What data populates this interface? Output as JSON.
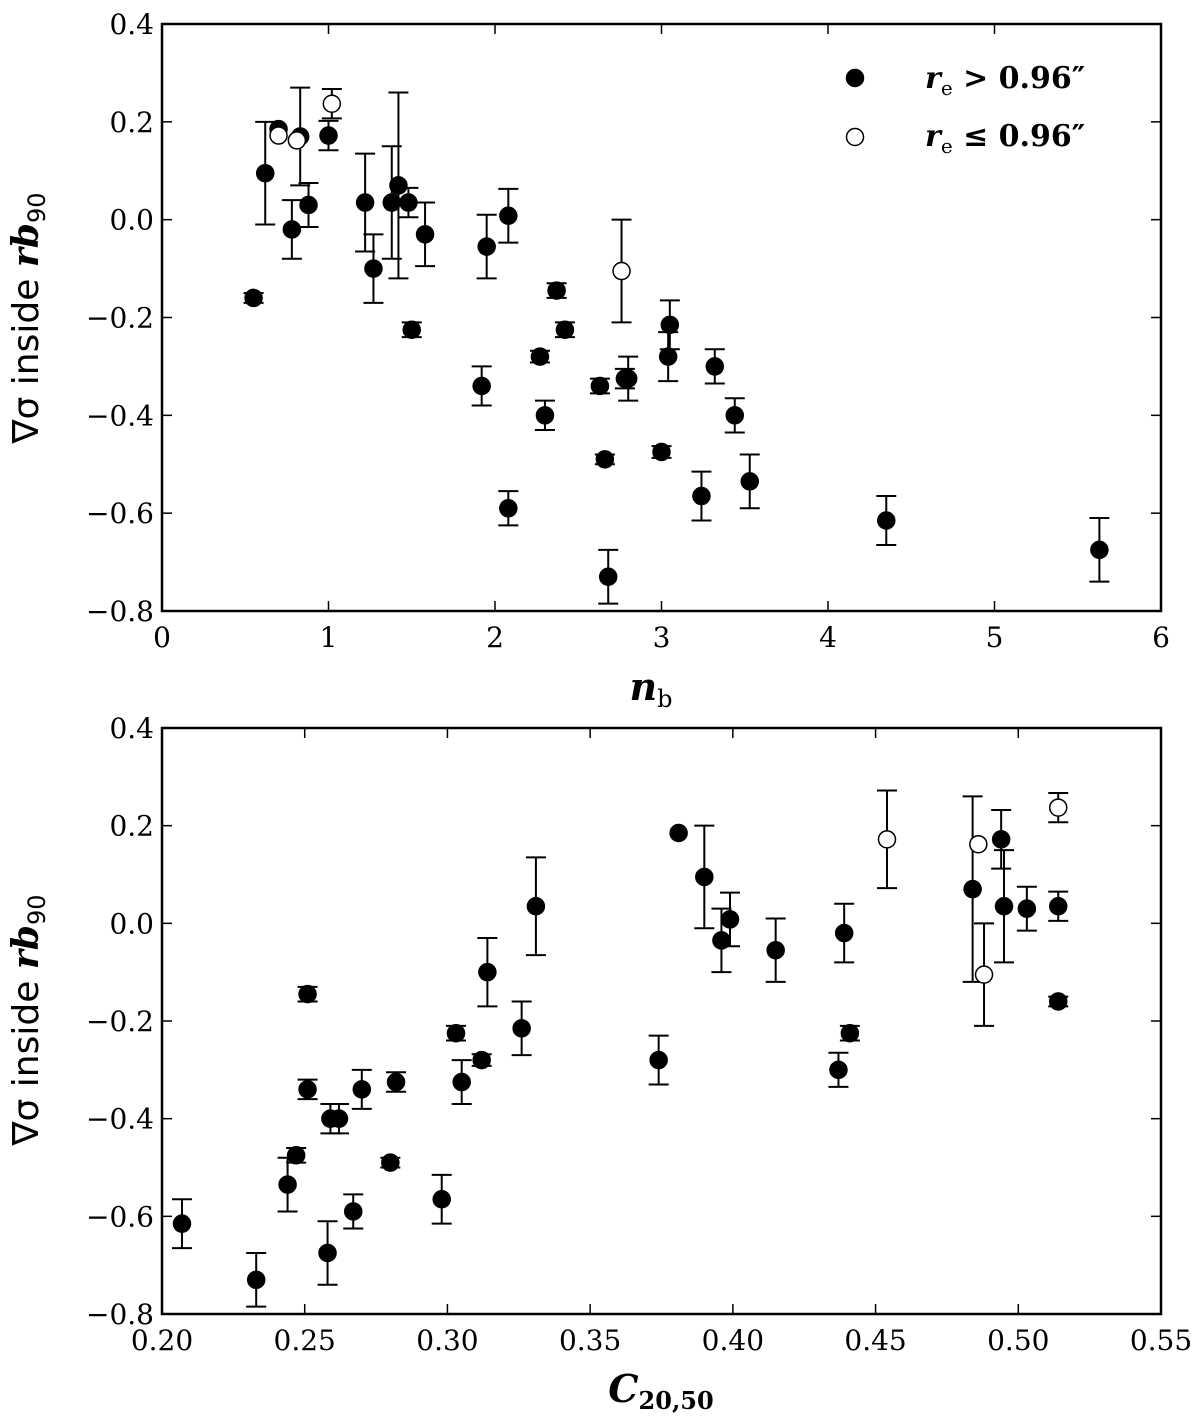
{
  "chart_data": [
    {
      "type": "scatter",
      "xlabel": "n_b",
      "xlabel_main": "n",
      "xlabel_sub": "b",
      "ylabel": "∇σ inside rb90",
      "ylabel_text": "∇σ inside ",
      "ylabel_math": "rb",
      "ylabel_sub": "90",
      "xlim": [
        0,
        6
      ],
      "ylim": [
        -0.8,
        0.4
      ],
      "xticks": [
        0,
        1,
        2,
        3,
        4,
        5,
        6
      ],
      "xtick_labels": [
        "0",
        "1",
        "2",
        "3",
        "4",
        "5",
        "6"
      ],
      "yticks": [
        -0.8,
        -0.6,
        -0.4,
        -0.2,
        0.0,
        0.2,
        0.4
      ],
      "ytick_labels": [
        "−0.8",
        "−0.6",
        "−0.4",
        "−0.2",
        "0.0",
        "0.2",
        "0.4"
      ],
      "legend": {
        "placement": "top-right",
        "entries": [
          {
            "marker": "filled",
            "label": "r_e > 0.96″",
            "label_main": "r",
            "label_sub": "e",
            "label_rest": " > 0.96″"
          },
          {
            "marker": "open",
            "label": "r_e ≤ 0.96″",
            "label_main": "r",
            "label_sub": "e",
            "label_rest": " ≤ 0.96″"
          }
        ]
      },
      "series": [
        {
          "name": "r_e > 0.96″",
          "marker": "filled",
          "points": [
            {
              "x": 0.55,
              "y": -0.16,
              "err": 0.01
            },
            {
              "x": 0.62,
              "y": 0.095,
              "err": 0.105
            },
            {
              "x": 0.7,
              "y": 0.185,
              "err": 0.0
            },
            {
              "x": 0.78,
              "y": -0.02,
              "err": 0.06
            },
            {
              "x": 0.83,
              "y": 0.17,
              "err": 0.1
            },
            {
              "x": 0.88,
              "y": 0.03,
              "err": 0.045
            },
            {
              "x": 1.0,
              "y": 0.172,
              "err": 0.03
            },
            {
              "x": 1.22,
              "y": 0.035,
              "err": 0.1
            },
            {
              "x": 1.27,
              "y": -0.1,
              "err": 0.07
            },
            {
              "x": 1.38,
              "y": 0.035,
              "err": 0.115
            },
            {
              "x": 1.42,
              "y": 0.07,
              "err": 0.19
            },
            {
              "x": 1.48,
              "y": 0.035,
              "err": 0.03
            },
            {
              "x": 1.5,
              "y": -0.225,
              "err": 0.015
            },
            {
              "x": 1.58,
              "y": -0.03,
              "err": 0.065
            },
            {
              "x": 1.92,
              "y": -0.34,
              "err": 0.04
            },
            {
              "x": 1.95,
              "y": -0.055,
              "err": 0.065
            },
            {
              "x": 2.08,
              "y": 0.008,
              "err": 0.055
            },
            {
              "x": 2.08,
              "y": -0.59,
              "err": 0.035
            },
            {
              "x": 2.27,
              "y": -0.28,
              "err": 0.012
            },
            {
              "x": 2.3,
              "y": -0.4,
              "err": 0.03
            },
            {
              "x": 2.37,
              "y": -0.145,
              "err": 0.015
            },
            {
              "x": 2.42,
              "y": -0.225,
              "err": 0.015
            },
            {
              "x": 2.63,
              "y": -0.34,
              "err": 0.015
            },
            {
              "x": 2.66,
              "y": -0.49,
              "err": 0.01
            },
            {
              "x": 2.68,
              "y": -0.73,
              "err": 0.055
            },
            {
              "x": 2.78,
              "y": -0.325,
              "err": 0.02
            },
            {
              "x": 2.8,
              "y": -0.325,
              "err": 0.045
            },
            {
              "x": 3.0,
              "y": -0.475,
              "err": 0.012
            },
            {
              "x": 3.04,
              "y": -0.28,
              "err": 0.05
            },
            {
              "x": 3.05,
              "y": -0.215,
              "err": 0.05
            },
            {
              "x": 3.24,
              "y": -0.565,
              "err": 0.05
            },
            {
              "x": 3.32,
              "y": -0.3,
              "err": 0.035
            },
            {
              "x": 3.44,
              "y": -0.4,
              "err": 0.035
            },
            {
              "x": 3.53,
              "y": -0.535,
              "err": 0.055
            },
            {
              "x": 4.35,
              "y": -0.615,
              "err": 0.05
            },
            {
              "x": 5.63,
              "y": -0.675,
              "err": 0.065
            }
          ]
        },
        {
          "name": "r_e ≤ 0.96″",
          "marker": "open",
          "points": [
            {
              "x": 0.7,
              "y": 0.172,
              "err": 0.0
            },
            {
              "x": 0.81,
              "y": 0.162,
              "err": 0.0
            },
            {
              "x": 1.02,
              "y": 0.237,
              "err": 0.03
            },
            {
              "x": 2.76,
              "y": -0.105,
              "err": 0.105
            }
          ]
        }
      ]
    },
    {
      "type": "scatter",
      "xlabel": "C_20,50",
      "xlabel_main": "C",
      "xlabel_sub": "20,50",
      "ylabel": "∇σ inside rb90",
      "ylabel_text": "∇σ inside ",
      "ylabel_math": "rb",
      "ylabel_sub": "90",
      "xlim": [
        0.2,
        0.55
      ],
      "ylim": [
        -0.8,
        0.4
      ],
      "xticks": [
        0.2,
        0.25,
        0.3,
        0.35,
        0.4,
        0.45,
        0.5,
        0.55
      ],
      "xtick_labels": [
        "0.20",
        "0.25",
        "0.30",
        "0.35",
        "0.40",
        "0.45",
        "0.50",
        "0.55"
      ],
      "yticks": [
        -0.8,
        -0.6,
        -0.4,
        -0.2,
        0.0,
        0.2,
        0.4
      ],
      "ytick_labels": [
        "−0.8",
        "−0.6",
        "−0.4",
        "−0.2",
        "0.0",
        "0.2",
        "0.4"
      ],
      "series": [
        {
          "name": "r_e > 0.96″",
          "marker": "filled",
          "points": [
            {
              "x": 0.207,
              "y": -0.615,
              "err": 0.05
            },
            {
              "x": 0.233,
              "y": -0.73,
              "err": 0.055
            },
            {
              "x": 0.244,
              "y": -0.535,
              "err": 0.055
            },
            {
              "x": 0.247,
              "y": -0.475,
              "err": 0.015
            },
            {
              "x": 0.251,
              "y": -0.145,
              "err": 0.015
            },
            {
              "x": 0.251,
              "y": -0.34,
              "err": 0.02
            },
            {
              "x": 0.258,
              "y": -0.675,
              "err": 0.065
            },
            {
              "x": 0.259,
              "y": -0.4,
              "err": 0.03
            },
            {
              "x": 0.262,
              "y": -0.4,
              "err": 0.03
            },
            {
              "x": 0.267,
              "y": -0.59,
              "err": 0.035
            },
            {
              "x": 0.27,
              "y": -0.34,
              "err": 0.04
            },
            {
              "x": 0.28,
              "y": -0.49,
              "err": 0.01
            },
            {
              "x": 0.282,
              "y": -0.325,
              "err": 0.02
            },
            {
              "x": 0.298,
              "y": -0.565,
              "err": 0.05
            },
            {
              "x": 0.303,
              "y": -0.225,
              "err": 0.015
            },
            {
              "x": 0.305,
              "y": -0.325,
              "err": 0.045
            },
            {
              "x": 0.312,
              "y": -0.28,
              "err": 0.012
            },
            {
              "x": 0.314,
              "y": -0.1,
              "err": 0.07
            },
            {
              "x": 0.326,
              "y": -0.215,
              "err": 0.055
            },
            {
              "x": 0.331,
              "y": 0.035,
              "err": 0.1
            },
            {
              "x": 0.374,
              "y": -0.28,
              "err": 0.05
            },
            {
              "x": 0.381,
              "y": 0.185,
              "err": 0.0
            },
            {
              "x": 0.39,
              "y": 0.095,
              "err": 0.105
            },
            {
              "x": 0.396,
              "y": -0.035,
              "err": 0.065
            },
            {
              "x": 0.399,
              "y": 0.008,
              "err": 0.055
            },
            {
              "x": 0.415,
              "y": -0.055,
              "err": 0.065
            },
            {
              "x": 0.437,
              "y": -0.3,
              "err": 0.035
            },
            {
              "x": 0.439,
              "y": -0.02,
              "err": 0.06
            },
            {
              "x": 0.441,
              "y": -0.225,
              "err": 0.015
            },
            {
              "x": 0.484,
              "y": 0.07,
              "err": 0.19
            },
            {
              "x": 0.494,
              "y": 0.172,
              "err": 0.06
            },
            {
              "x": 0.495,
              "y": 0.035,
              "err": 0.115
            },
            {
              "x": 0.503,
              "y": 0.03,
              "err": 0.045
            },
            {
              "x": 0.514,
              "y": 0.035,
              "err": 0.03
            },
            {
              "x": 0.514,
              "y": -0.16,
              "err": 0.01
            }
          ]
        },
        {
          "name": "r_e ≤ 0.96″",
          "marker": "open",
          "points": [
            {
              "x": 0.454,
              "y": 0.172,
              "err": 0.1
            },
            {
              "x": 0.486,
              "y": 0.162,
              "err": 0.0
            },
            {
              "x": 0.488,
              "y": -0.105,
              "err": 0.105
            },
            {
              "x": 0.514,
              "y": 0.237,
              "err": 0.03
            }
          ]
        }
      ]
    }
  ]
}
